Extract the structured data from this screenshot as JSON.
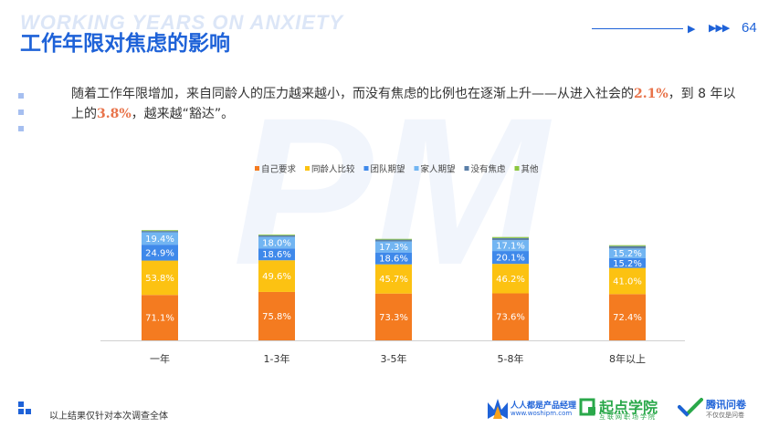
{
  "header": {
    "bg_title": "WORKING YEARS ON ANXIETY",
    "title": "工作年限对焦虑的影响",
    "page_number": "64",
    "arrows": "▶▶▶"
  },
  "watermark": "PM",
  "description": {
    "part1": "随着工作年限增加，来自同龄人的压力越来越小，而没有焦虑的比例也在逐渐上升——从进入社会的",
    "value1": "2.1%",
    "part2": "，到 8 年以上的",
    "value2": "3.8%",
    "part3": "，越来越“豁达”。"
  },
  "chart_data": {
    "type": "bar",
    "stacked": true,
    "categories": [
      "一年",
      "1-3年",
      "3-5年",
      "5-8年",
      "8年以上"
    ],
    "series": [
      {
        "name": "自己要求",
        "color": "#f47b20",
        "values": [
          71.1,
          75.8,
          73.3,
          73.6,
          72.4
        ],
        "labels": [
          "71.1%",
          "75.8%",
          "73.3%",
          "73.6%",
          "72.4%"
        ]
      },
      {
        "name": "同龄人比较",
        "color": "#fcc212",
        "values": [
          53.8,
          49.6,
          45.7,
          46.2,
          41.0
        ],
        "labels": [
          "53.8%",
          "49.6%",
          "45.7%",
          "46.2%",
          "41.0%"
        ]
      },
      {
        "name": "团队期望",
        "color": "#3f89ea",
        "values": [
          24.9,
          18.6,
          18.6,
          20.1,
          15.2
        ],
        "labels": [
          "24.9%",
          "18.6%",
          "18.6%",
          "20.1%",
          "15.2%"
        ]
      },
      {
        "name": "家人期望",
        "color": "#72b5f2",
        "values": [
          19.4,
          18.0,
          17.3,
          17.1,
          15.2
        ],
        "labels": [
          "19.4%",
          "18.0%",
          "17.3%",
          "17.1%",
          "15.2%"
        ]
      },
      {
        "name": "没有焦虑",
        "color": "#5a7fa8",
        "values": [
          2.1,
          2.4,
          2.8,
          3.2,
          3.8
        ]
      },
      {
        "name": "其他",
        "color": "#8cc63f",
        "values": [
          1.2,
          1.2,
          1.2,
          1.6,
          1.4
        ]
      }
    ],
    "legend_position": "top-center",
    "grid": false
  },
  "footer": {
    "note": "以上结果仅针对本次调查全体",
    "logo1_main": "人人都是产品经理",
    "logo1_sub": "www.woshipm.com",
    "logo2_main": "起点学院",
    "logo2_sub": "互联网职场学院",
    "logo3_main": "腾讯问卷",
    "logo3_sub": "不仅仅是问卷"
  }
}
